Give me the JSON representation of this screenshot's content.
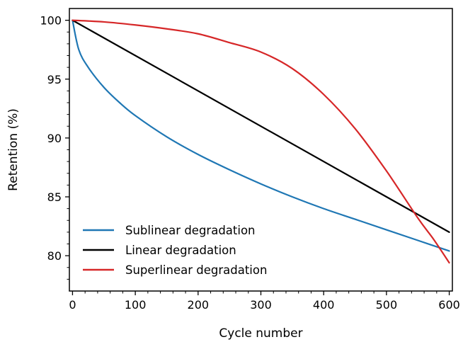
{
  "chart_data": {
    "type": "line",
    "title": "",
    "xlabel": "Cycle number",
    "ylabel": "Retention (%)",
    "xlim": [
      -5,
      605
    ],
    "ylim": [
      77,
      101
    ],
    "x_ticks": [
      0,
      100,
      200,
      300,
      400,
      500,
      600
    ],
    "y_ticks": [
      80,
      85,
      90,
      95,
      100
    ],
    "grid": false,
    "legend_position": "lower-left",
    "series": [
      {
        "name": "Sublinear degradation",
        "color": "#1f77b4",
        "x": [
          0,
          10,
          25,
          50,
          75,
          100,
          150,
          200,
          250,
          300,
          350,
          400,
          450,
          500,
          550,
          600
        ],
        "y": [
          100,
          97.5,
          96.0,
          94.3,
          93.0,
          91.9,
          90.1,
          88.6,
          87.3,
          86.1,
          85.0,
          84.0,
          83.1,
          82.2,
          81.3,
          80.4
        ]
      },
      {
        "name": "Linear degradation",
        "color": "#000000",
        "x": [
          0,
          600
        ],
        "y": [
          100,
          82
        ]
      },
      {
        "name": "Superlinear degradation",
        "color": "#d62728",
        "x": [
          0,
          50,
          100,
          150,
          200,
          250,
          300,
          350,
          400,
          450,
          500,
          550,
          575,
          600
        ],
        "y": [
          100,
          99.86,
          99.6,
          99.27,
          98.85,
          98.1,
          97.3,
          95.9,
          93.7,
          90.8,
          87.2,
          83.2,
          81.4,
          79.4
        ]
      }
    ]
  }
}
